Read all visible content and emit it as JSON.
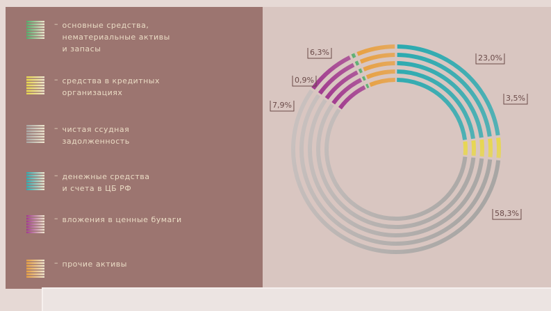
{
  "chart_data": {
    "type": "donut",
    "categories": [
      "основные средства,\nнематериальные активы\nи запасы",
      "средства в кредитных\nорганизациях",
      "чистая ссудная\nзадолженность",
      "денежные средства\nи счета в ЦБ РФ",
      "вложения в ценные бумаги",
      "прочие активы"
    ],
    "colors": [
      "#4fae6a",
      "#e8d84a",
      "#a8a6a4",
      "#2aaab0",
      "#a0388e",
      "#e8a040"
    ],
    "values": [
      0.9,
      3.5,
      58.3,
      23.0,
      7.9,
      6.3
    ],
    "value_labels": [
      "0,9%",
      "3,5%",
      "58,3%",
      "23,0%",
      "7,9%",
      "6,3%"
    ],
    "draw_order": [
      3,
      1,
      2,
      4,
      0,
      5
    ],
    "legend_marker": "–"
  }
}
